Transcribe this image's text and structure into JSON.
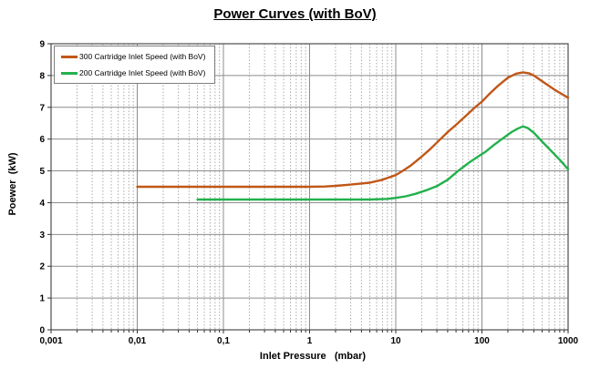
{
  "title": "Power Curves (with BoV)",
  "chart_data": {
    "type": "line",
    "title": "Power Curves (with BoV)",
    "xlabel": "Inlet Pressure   (mbar)",
    "ylabel": "Poewer  (kW)",
    "x_scale": "log",
    "xlim": [
      0.001,
      1000
    ],
    "ylim": [
      0,
      9
    ],
    "x_tick_labels": [
      "0,001",
      "0,01",
      "0,1",
      "1",
      "10",
      "100",
      "1000"
    ],
    "y_tick_labels": [
      "0",
      "1",
      "2",
      "3",
      "4",
      "5",
      "6",
      "7",
      "8",
      "9"
    ],
    "grid": {
      "horizontal_major": "solid",
      "vertical_log_minor": "dotted",
      "vertical_decade": "solid"
    },
    "legend_position": "top-left",
    "colors": {
      "grid_major": "#8c8c8c",
      "grid_minor": "#ababab",
      "plot_border": "#4d4d4d",
      "axis": "#333333",
      "background": "#ffffff"
    },
    "series": [
      {
        "name": "300 Cartridge Inlet Speed (with BoV)",
        "color": "#c05717",
        "points": [
          [
            0.01,
            4.5
          ],
          [
            0.02,
            4.5
          ],
          [
            0.05,
            4.5
          ],
          [
            0.1,
            4.5
          ],
          [
            0.2,
            4.5
          ],
          [
            0.5,
            4.5
          ],
          [
            1,
            4.5
          ],
          [
            1.5,
            4.51
          ],
          [
            2,
            4.53
          ],
          [
            3,
            4.57
          ],
          [
            5,
            4.63
          ],
          [
            7,
            4.72
          ],
          [
            10,
            4.87
          ],
          [
            12,
            5.0
          ],
          [
            15,
            5.17
          ],
          [
            20,
            5.45
          ],
          [
            25,
            5.68
          ],
          [
            33,
            6.0
          ],
          [
            40,
            6.22
          ],
          [
            50,
            6.45
          ],
          [
            65,
            6.73
          ],
          [
            83,
            7.0
          ],
          [
            100,
            7.18
          ],
          [
            120,
            7.4
          ],
          [
            150,
            7.65
          ],
          [
            200,
            7.93
          ],
          [
            250,
            8.06
          ],
          [
            300,
            8.1
          ],
          [
            350,
            8.07
          ],
          [
            400,
            8.0
          ],
          [
            500,
            7.82
          ],
          [
            700,
            7.55
          ],
          [
            1000,
            7.3
          ]
        ]
      },
      {
        "name": "200 Cartridge Inlet Speed (with BoV)",
        "color": "#23b14d",
        "points": [
          [
            0.05,
            4.1
          ],
          [
            0.1,
            4.1
          ],
          [
            0.3,
            4.1
          ],
          [
            1,
            4.1
          ],
          [
            3,
            4.1
          ],
          [
            5,
            4.1
          ],
          [
            8,
            4.12
          ],
          [
            10,
            4.15
          ],
          [
            13,
            4.2
          ],
          [
            17,
            4.28
          ],
          [
            22,
            4.38
          ],
          [
            30,
            4.52
          ],
          [
            40,
            4.72
          ],
          [
            53,
            5.0
          ],
          [
            70,
            5.25
          ],
          [
            90,
            5.45
          ],
          [
            110,
            5.6
          ],
          [
            140,
            5.83
          ],
          [
            170,
            6.0
          ],
          [
            220,
            6.22
          ],
          [
            260,
            6.33
          ],
          [
            300,
            6.4
          ],
          [
            340,
            6.35
          ],
          [
            400,
            6.2
          ],
          [
            500,
            5.92
          ],
          [
            650,
            5.6
          ],
          [
            800,
            5.35
          ],
          [
            1000,
            5.05
          ]
        ]
      }
    ]
  }
}
